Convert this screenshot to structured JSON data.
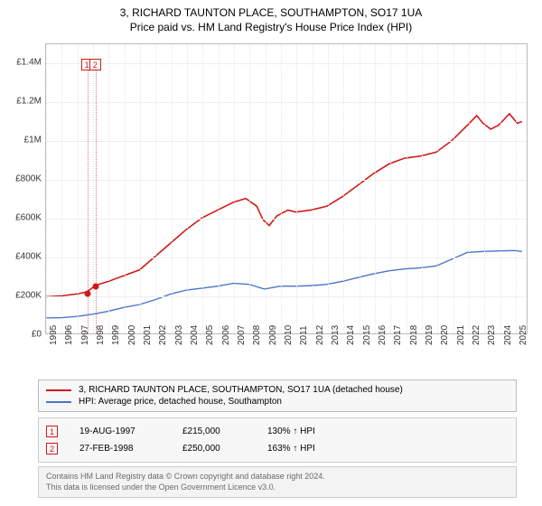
{
  "title": {
    "main": "3, RICHARD TAUNTON PLACE, SOUTHAMPTON, SO17 1UA",
    "sub": "Price paid vs. HM Land Registry's House Price Index (HPI)",
    "fontsize": 12,
    "color": "#222222"
  },
  "chart": {
    "type": "line",
    "background_color": "#ffffff",
    "grid_color": "#eeeeee",
    "border_color": "#bbbbbb",
    "x": {
      "min": 1995,
      "max": 2025.8,
      "ticks": [
        1995,
        1996,
        1997,
        1998,
        1999,
        2000,
        2001,
        2002,
        2003,
        2004,
        2005,
        2006,
        2007,
        2008,
        2009,
        2010,
        2011,
        2012,
        2013,
        2014,
        2015,
        2016,
        2017,
        2018,
        2019,
        2020,
        2021,
        2022,
        2023,
        2024,
        2025
      ],
      "label_fontsize": 10
    },
    "y": {
      "min": 0,
      "max": 1500000,
      "ticks": [
        0,
        200000,
        400000,
        600000,
        800000,
        1000000,
        1200000,
        1400000
      ],
      "tick_labels": [
        "£0",
        "£200K",
        "£400K",
        "£600K",
        "£800K",
        "£1M",
        "£1.2M",
        "£1.4M"
      ],
      "label_fontsize": 10
    },
    "series": [
      {
        "id": "price_paid",
        "label": "3, RICHARD TAUNTON PLACE, SOUTHAMPTON, SO17 1UA (detached house)",
        "color": "#d01919",
        "line_width": 1.6,
        "points": [
          [
            1995.0,
            190000
          ],
          [
            1996.0,
            195000
          ],
          [
            1997.0,
            205000
          ],
          [
            1997.6,
            215000
          ],
          [
            1998.2,
            250000
          ],
          [
            1999.0,
            270000
          ],
          [
            2000.0,
            300000
          ],
          [
            2001.0,
            330000
          ],
          [
            2002.0,
            400000
          ],
          [
            2003.0,
            470000
          ],
          [
            2004.0,
            540000
          ],
          [
            2005.0,
            600000
          ],
          [
            2006.0,
            640000
          ],
          [
            2007.0,
            680000
          ],
          [
            2007.8,
            700000
          ],
          [
            2008.5,
            660000
          ],
          [
            2008.9,
            590000
          ],
          [
            2009.3,
            560000
          ],
          [
            2009.8,
            610000
          ],
          [
            2010.5,
            640000
          ],
          [
            2011.0,
            630000
          ],
          [
            2012.0,
            640000
          ],
          [
            2013.0,
            660000
          ],
          [
            2014.0,
            710000
          ],
          [
            2015.0,
            770000
          ],
          [
            2016.0,
            830000
          ],
          [
            2017.0,
            880000
          ],
          [
            2018.0,
            910000
          ],
          [
            2019.0,
            920000
          ],
          [
            2020.0,
            940000
          ],
          [
            2021.0,
            1000000
          ],
          [
            2022.0,
            1080000
          ],
          [
            2022.6,
            1130000
          ],
          [
            2023.0,
            1090000
          ],
          [
            2023.5,
            1060000
          ],
          [
            2024.0,
            1080000
          ],
          [
            2024.7,
            1140000
          ],
          [
            2025.2,
            1090000
          ],
          [
            2025.5,
            1100000
          ]
        ]
      },
      {
        "id": "hpi",
        "label": "HPI: Average price, detached house, Southampton",
        "color": "#4a76c7",
        "line_width": 1.4,
        "points": [
          [
            1995.0,
            80000
          ],
          [
            1996.0,
            82000
          ],
          [
            1997.0,
            88000
          ],
          [
            1998.0,
            100000
          ],
          [
            1999.0,
            115000
          ],
          [
            2000.0,
            135000
          ],
          [
            2001.0,
            150000
          ],
          [
            2002.0,
            175000
          ],
          [
            2003.0,
            205000
          ],
          [
            2004.0,
            225000
          ],
          [
            2005.0,
            235000
          ],
          [
            2006.0,
            245000
          ],
          [
            2007.0,
            260000
          ],
          [
            2008.0,
            255000
          ],
          [
            2009.0,
            230000
          ],
          [
            2010.0,
            245000
          ],
          [
            2011.0,
            245000
          ],
          [
            2012.0,
            248000
          ],
          [
            2013.0,
            255000
          ],
          [
            2014.0,
            270000
          ],
          [
            2015.0,
            290000
          ],
          [
            2016.0,
            310000
          ],
          [
            2017.0,
            325000
          ],
          [
            2018.0,
            335000
          ],
          [
            2019.0,
            340000
          ],
          [
            2020.0,
            350000
          ],
          [
            2021.0,
            385000
          ],
          [
            2022.0,
            420000
          ],
          [
            2023.0,
            425000
          ],
          [
            2024.0,
            428000
          ],
          [
            2025.0,
            430000
          ],
          [
            2025.5,
            425000
          ]
        ]
      }
    ],
    "event_markers": [
      {
        "n": "1",
        "x": 1997.63,
        "y": 215000,
        "dot_color": "#d01919"
      },
      {
        "n": "2",
        "x": 1998.16,
        "y": 250000,
        "dot_color": "#d01919"
      }
    ]
  },
  "legend": {
    "items": [
      {
        "color": "#d01919",
        "text": "3, RICHARD TAUNTON PLACE, SOUTHAMPTON, SO17 1UA (detached house)"
      },
      {
        "color": "#4a76c7",
        "text": "HPI: Average price, detached house, Southampton"
      }
    ],
    "fontsize": 10,
    "background": "#f7f7f7",
    "border": "#bbbbbb"
  },
  "events": {
    "rows": [
      {
        "n": "1",
        "date": "19-AUG-1997",
        "price": "£215,000",
        "pct": "130% ↑ HPI"
      },
      {
        "n": "2",
        "date": "27-FEB-1998",
        "price": "£250,000",
        "pct": "163% ↑ HPI"
      }
    ],
    "marker_border": "#d01919",
    "fontsize": 10
  },
  "footer": {
    "line1": "Contains HM Land Registry data © Crown copyright and database right 2024.",
    "line2": "This data is licensed under the Open Government Licence v3.0.",
    "fontsize": 9,
    "color": "#6a6a6a"
  }
}
